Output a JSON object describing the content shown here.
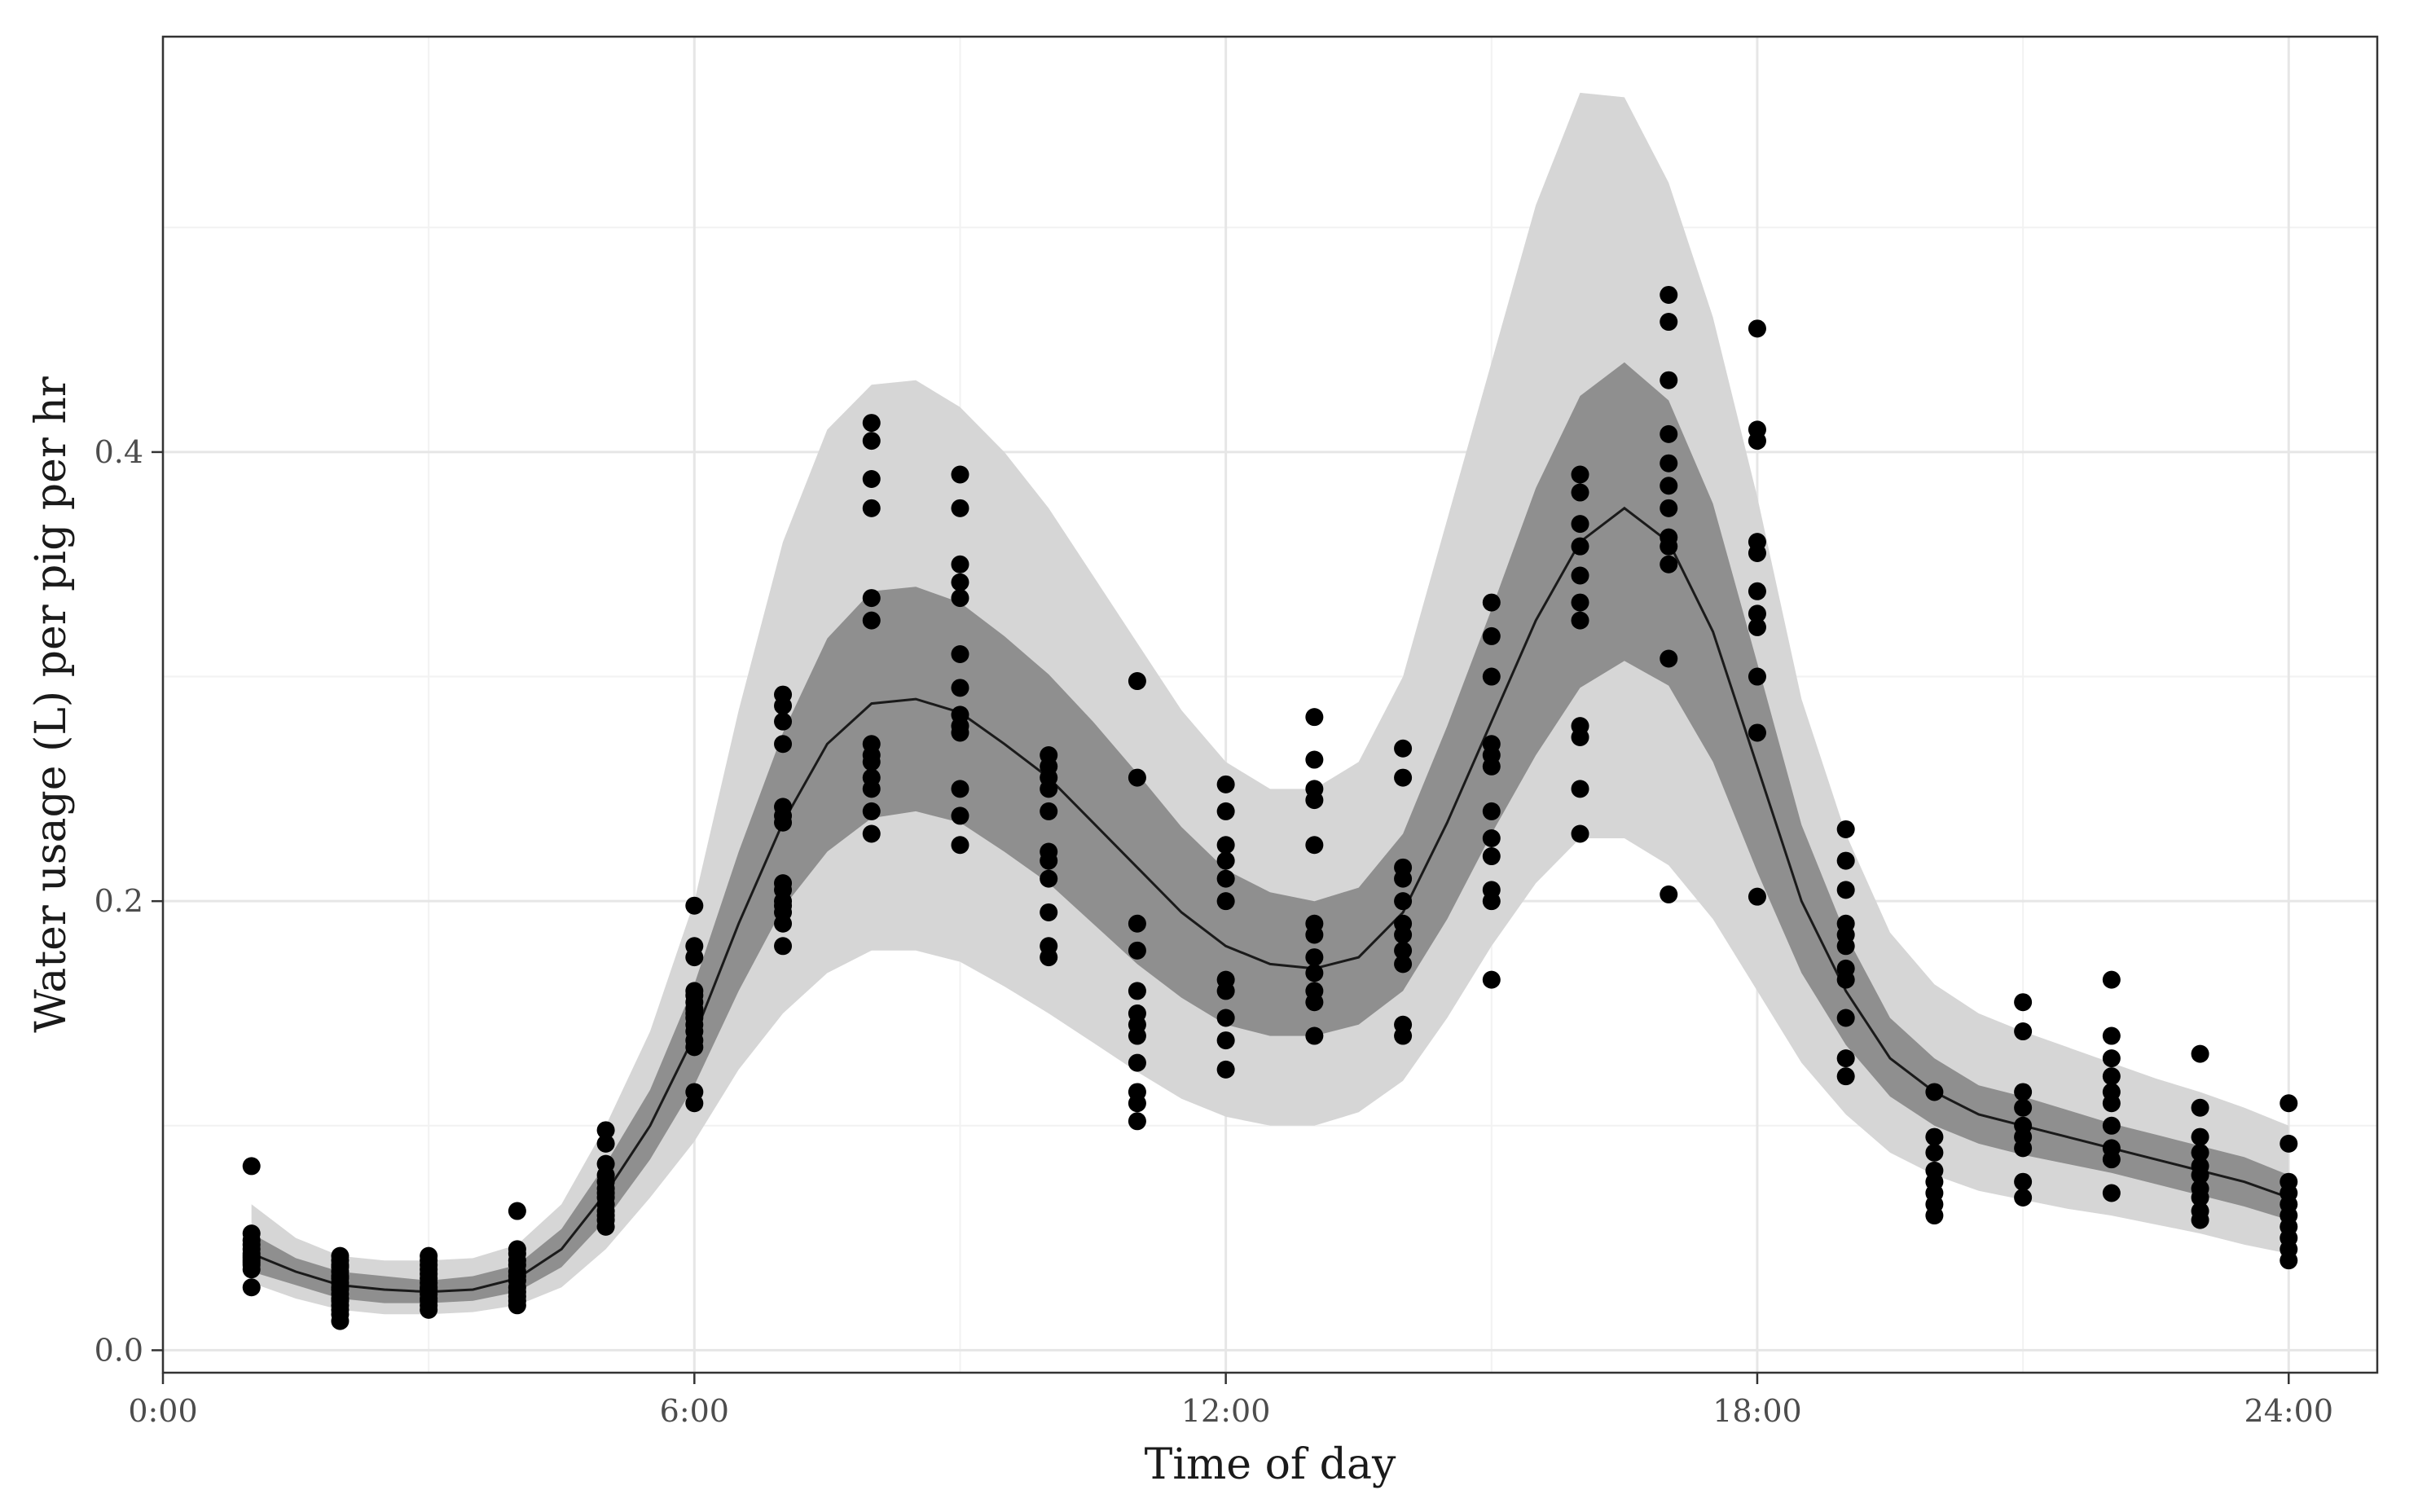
{
  "chart_data": {
    "type": "scatter",
    "title": "",
    "xlabel": "Time of day",
    "ylabel": "Water usage (L) per pig per hr",
    "xlim": [
      0,
      25
    ],
    "ylim": [
      -0.01,
      0.585
    ],
    "x_ticks": [
      0,
      6,
      12,
      18,
      24
    ],
    "x_tick_labels": [
      "0:00",
      "6:00",
      "12:00",
      "18:00",
      "24:00"
    ],
    "y_ticks": [
      0.0,
      0.2,
      0.4
    ],
    "y_tick_labels": [
      "0.0",
      "0.2",
      "0.4"
    ],
    "y_minor_ticks": [
      0.1,
      0.3,
      0.5
    ],
    "x_minor_ticks": [
      3,
      9,
      15,
      21
    ],
    "grid": true,
    "legend": "none",
    "fit_line": {
      "name": "mean",
      "x": [
        1,
        1.5,
        2,
        2.5,
        3,
        3.5,
        4,
        4.5,
        5,
        5.5,
        6,
        6.5,
        7,
        7.5,
        8,
        8.5,
        9,
        9.5,
        10,
        10.5,
        11,
        11.5,
        12,
        12.5,
        13,
        13.5,
        14,
        14.5,
        15,
        15.5,
        16,
        16.5,
        17,
        17.5,
        18,
        18.5,
        19,
        19.5,
        20,
        20.5,
        21,
        21.5,
        22,
        22.5,
        23,
        23.5,
        24
      ],
      "y": [
        0.043,
        0.035,
        0.029,
        0.027,
        0.026,
        0.027,
        0.032,
        0.045,
        0.07,
        0.1,
        0.14,
        0.19,
        0.235,
        0.27,
        0.288,
        0.29,
        0.284,
        0.27,
        0.255,
        0.235,
        0.215,
        0.195,
        0.18,
        0.172,
        0.17,
        0.175,
        0.195,
        0.235,
        0.28,
        0.325,
        0.36,
        0.375,
        0.36,
        0.32,
        0.26,
        0.2,
        0.16,
        0.13,
        0.115,
        0.105,
        0.1,
        0.095,
        0.09,
        0.085,
        0.08,
        0.075,
        0.068
      ]
    },
    "band_inner": {
      "name": "inner interval",
      "lower": [
        0.035,
        0.029,
        0.023,
        0.021,
        0.021,
        0.022,
        0.026,
        0.037,
        0.058,
        0.085,
        0.118,
        0.16,
        0.197,
        0.222,
        0.237,
        0.24,
        0.235,
        0.222,
        0.208,
        0.19,
        0.172,
        0.157,
        0.145,
        0.14,
        0.14,
        0.145,
        0.16,
        0.192,
        0.23,
        0.265,
        0.295,
        0.307,
        0.296,
        0.262,
        0.213,
        0.168,
        0.136,
        0.113,
        0.1,
        0.092,
        0.087,
        0.083,
        0.079,
        0.074,
        0.069,
        0.064,
        0.058
      ],
      "upper": [
        0.052,
        0.041,
        0.035,
        0.033,
        0.031,
        0.033,
        0.038,
        0.054,
        0.083,
        0.116,
        0.163,
        0.222,
        0.275,
        0.317,
        0.338,
        0.34,
        0.333,
        0.318,
        0.301,
        0.28,
        0.257,
        0.233,
        0.214,
        0.204,
        0.2,
        0.206,
        0.23,
        0.278,
        0.33,
        0.384,
        0.425,
        0.44,
        0.423,
        0.377,
        0.306,
        0.234,
        0.185,
        0.148,
        0.13,
        0.118,
        0.113,
        0.107,
        0.101,
        0.096,
        0.091,
        0.086,
        0.078
      ]
    },
    "band_outer": {
      "name": "outer interval",
      "lower": [
        0.03,
        0.023,
        0.018,
        0.016,
        0.016,
        0.017,
        0.02,
        0.028,
        0.045,
        0.068,
        0.093,
        0.125,
        0.15,
        0.168,
        0.178,
        0.178,
        0.173,
        0.162,
        0.15,
        0.137,
        0.124,
        0.112,
        0.104,
        0.1,
        0.1,
        0.106,
        0.12,
        0.148,
        0.18,
        0.208,
        0.228,
        0.228,
        0.216,
        0.192,
        0.16,
        0.128,
        0.105,
        0.088,
        0.078,
        0.071,
        0.067,
        0.063,
        0.06,
        0.056,
        0.052,
        0.047,
        0.043
      ],
      "upper": [
        0.065,
        0.05,
        0.042,
        0.04,
        0.04,
        0.041,
        0.047,
        0.065,
        0.1,
        0.142,
        0.2,
        0.285,
        0.36,
        0.41,
        0.43,
        0.432,
        0.42,
        0.4,
        0.375,
        0.345,
        0.315,
        0.285,
        0.262,
        0.25,
        0.25,
        0.262,
        0.3,
        0.37,
        0.44,
        0.51,
        0.56,
        0.558,
        0.52,
        0.46,
        0.38,
        0.29,
        0.23,
        0.186,
        0.163,
        0.15,
        0.142,
        0.135,
        0.128,
        0.121,
        0.115,
        0.108,
        0.1
      ]
    },
    "points": [
      {
        "x": 1,
        "y": [
          0.082,
          0.052,
          0.049,
          0.047,
          0.045,
          0.043,
          0.042,
          0.041,
          0.04,
          0.039,
          0.038,
          0.036,
          0.028
        ]
      },
      {
        "x": 2,
        "y": [
          0.042,
          0.04,
          0.038,
          0.037,
          0.035,
          0.033,
          0.032,
          0.03,
          0.028,
          0.027,
          0.025,
          0.023,
          0.022,
          0.02,
          0.018,
          0.016,
          0.013
        ]
      },
      {
        "x": 3,
        "y": [
          0.042,
          0.04,
          0.038,
          0.036,
          0.034,
          0.032,
          0.03,
          0.028,
          0.027,
          0.025,
          0.023,
          0.022,
          0.02,
          0.018
        ]
      },
      {
        "x": 4,
        "y": [
          0.062,
          0.045,
          0.043,
          0.04,
          0.038,
          0.035,
          0.033,
          0.031,
          0.028,
          0.026,
          0.024,
          0.022,
          0.02
        ]
      },
      {
        "x": 5,
        "y": [
          0.098,
          0.092,
          0.083,
          0.078,
          0.075,
          0.072,
          0.07,
          0.068,
          0.065,
          0.062,
          0.06,
          0.058,
          0.055
        ]
      },
      {
        "x": 6,
        "y": [
          0.198,
          0.18,
          0.175,
          0.16,
          0.158,
          0.155,
          0.152,
          0.15,
          0.148,
          0.145,
          0.142,
          0.138,
          0.135,
          0.115,
          0.11
        ]
      },
      {
        "x": 7,
        "y": [
          0.292,
          0.287,
          0.28,
          0.27,
          0.242,
          0.238,
          0.235,
          0.208,
          0.205,
          0.2,
          0.198,
          0.195,
          0.19,
          0.18
        ]
      },
      {
        "x": 8,
        "y": [
          0.413,
          0.405,
          0.388,
          0.375,
          0.335,
          0.325,
          0.27,
          0.265,
          0.262,
          0.255,
          0.25,
          0.24,
          0.23
        ]
      },
      {
        "x": 9,
        "y": [
          0.39,
          0.375,
          0.35,
          0.342,
          0.335,
          0.31,
          0.295,
          0.283,
          0.278,
          0.275,
          0.25,
          0.238,
          0.225
        ]
      },
      {
        "x": 10,
        "y": [
          0.265,
          0.26,
          0.255,
          0.25,
          0.24,
          0.222,
          0.218,
          0.21,
          0.195,
          0.18,
          0.175
        ]
      },
      {
        "x": 11,
        "y": [
          0.298,
          0.255,
          0.19,
          0.178,
          0.16,
          0.15,
          0.145,
          0.14,
          0.128,
          0.115,
          0.11,
          0.102
        ]
      },
      {
        "x": 12,
        "y": [
          0.252,
          0.24,
          0.225,
          0.218,
          0.21,
          0.2,
          0.165,
          0.16,
          0.148,
          0.138,
          0.125
        ]
      },
      {
        "x": 13,
        "y": [
          0.282,
          0.263,
          0.25,
          0.245,
          0.225,
          0.19,
          0.185,
          0.175,
          0.168,
          0.16,
          0.155,
          0.14
        ]
      },
      {
        "x": 14,
        "y": [
          0.268,
          0.255,
          0.215,
          0.21,
          0.2,
          0.19,
          0.185,
          0.178,
          0.172,
          0.145,
          0.14
        ]
      },
      {
        "x": 15,
        "y": [
          0.333,
          0.318,
          0.3,
          0.27,
          0.265,
          0.26,
          0.24,
          0.228,
          0.22,
          0.205,
          0.2,
          0.165
        ]
      },
      {
        "x": 16,
        "y": [
          0.39,
          0.382,
          0.368,
          0.358,
          0.345,
          0.333,
          0.325,
          0.278,
          0.273,
          0.25,
          0.23
        ]
      },
      {
        "x": 17,
        "y": [
          0.47,
          0.458,
          0.432,
          0.408,
          0.395,
          0.385,
          0.375,
          0.362,
          0.358,
          0.35,
          0.308,
          0.203
        ]
      },
      {
        "x": 18,
        "y": [
          0.455,
          0.41,
          0.405,
          0.36,
          0.355,
          0.338,
          0.328,
          0.322,
          0.3,
          0.275,
          0.202
        ]
      },
      {
        "x": 19,
        "y": [
          0.232,
          0.218,
          0.205,
          0.19,
          0.185,
          0.18,
          0.17,
          0.165,
          0.148,
          0.13,
          0.122
        ]
      },
      {
        "x": 20,
        "y": [
          0.115,
          0.095,
          0.088,
          0.08,
          0.075,
          0.07,
          0.065,
          0.06
        ]
      },
      {
        "x": 21,
        "y": [
          0.155,
          0.142,
          0.115,
          0.108,
          0.1,
          0.095,
          0.09,
          0.075,
          0.068
        ]
      },
      {
        "x": 22,
        "y": [
          0.165,
          0.14,
          0.13,
          0.122,
          0.115,
          0.11,
          0.1,
          0.09,
          0.085,
          0.07
        ]
      },
      {
        "x": 23,
        "y": [
          0.132,
          0.108,
          0.095,
          0.088,
          0.082,
          0.078,
          0.072,
          0.068,
          0.062,
          0.058
        ]
      },
      {
        "x": 24,
        "y": [
          0.11,
          0.092,
          0.075,
          0.07,
          0.065,
          0.06,
          0.055,
          0.05,
          0.045,
          0.04
        ]
      }
    ]
  }
}
